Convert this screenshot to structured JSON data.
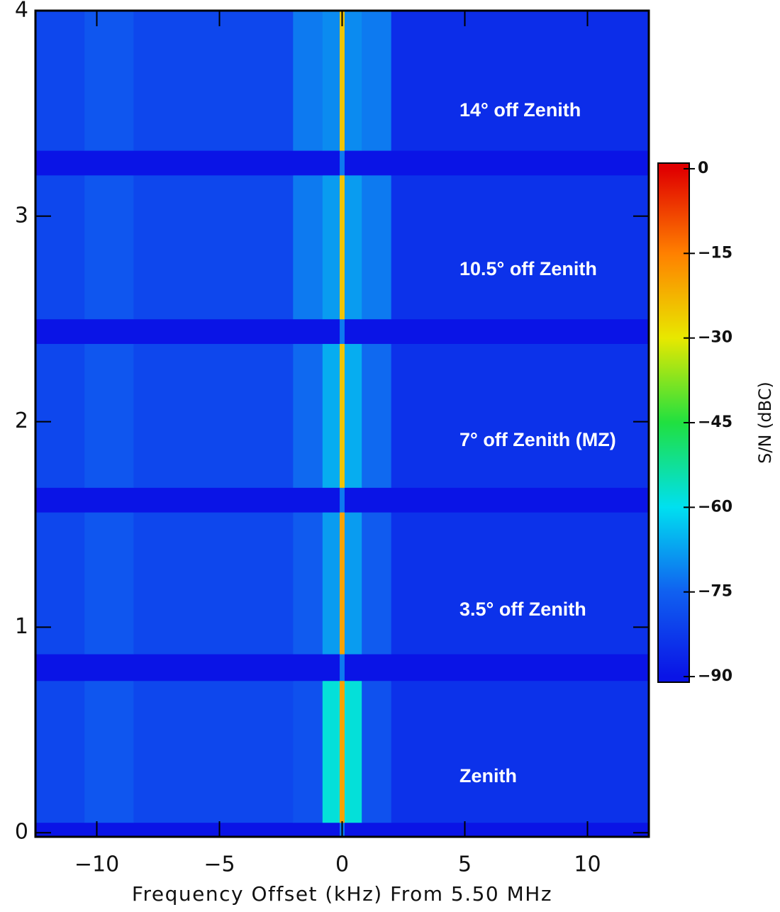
{
  "chart_data": {
    "type": "heatmap",
    "xlabel": "Frequency Offset (kHz) From 5.50 MHz",
    "xlim": [
      -12.5,
      12.5
    ],
    "xticks": [
      {
        "value": -10,
        "label": "−10"
      },
      {
        "value": -5,
        "label": "−5"
      },
      0,
      5,
      10
    ],
    "ylim": [
      -0.02,
      4
    ],
    "yticks": [
      0,
      1,
      2,
      3,
      4
    ],
    "x": [
      -12.5,
      -10.5,
      -8.5,
      -2,
      -0.8,
      -0.1,
      0.1,
      0.8,
      2,
      12.5
    ],
    "y": [
      -0.02,
      0.05,
      0.74,
      0.87,
      1.56,
      1.68,
      2.38,
      2.5,
      3.2,
      3.32,
      4
    ],
    "z": [
      [
        -90,
        -90,
        -90,
        -90,
        -90,
        -72,
        -90,
        -90,
        -90
      ],
      [
        -80,
        -77,
        -80,
        -78,
        -58,
        -20,
        -58,
        -78,
        -84
      ],
      [
        -90,
        -90,
        -90,
        -90,
        -90,
        -72,
        -90,
        -90,
        -90
      ],
      [
        -80,
        -77,
        -80,
        -76,
        -68,
        -20,
        -68,
        -76,
        -84
      ],
      [
        -90,
        -90,
        -90,
        -90,
        -90,
        -72,
        -90,
        -90,
        -90
      ],
      [
        -80,
        -77,
        -80,
        -74,
        -66,
        -25,
        -66,
        -74,
        -84
      ],
      [
        -90,
        -90,
        -90,
        -90,
        -90,
        -72,
        -90,
        -90,
        -90
      ],
      [
        -80,
        -77,
        -80,
        -72,
        -68,
        -25,
        -68,
        -72,
        -84
      ],
      [
        -90,
        -90,
        -90,
        -90,
        -90,
        -72,
        -90,
        -90,
        -90
      ],
      [
        -80,
        -77,
        -80,
        -72,
        -70,
        -25,
        -70,
        -72,
        -85
      ]
    ],
    "colormap": [
      "#0a14e6",
      "#1060f0",
      "#00e0f0",
      "#20e040",
      "#e8e800",
      "#ff8000",
      "#e00000"
    ],
    "colorbar": {
      "label": "S/N (dBC)",
      "lim": [
        -91,
        1
      ],
      "ticks": [
        0,
        {
          "value": -15,
          "label": "−15"
        },
        {
          "value": -30,
          "label": "−30"
        },
        {
          "value": -45,
          "label": "−45"
        },
        {
          "value": -60,
          "label": "−60"
        },
        {
          "value": -75,
          "label": "−75"
        },
        {
          "value": -90,
          "label": "−90"
        }
      ]
    },
    "annotations": [
      "14° off Zenith",
      "10.5° off Zenith",
      "7° off Zenith (MZ)",
      "3.5° off Zenith",
      "Zenith"
    ]
  }
}
